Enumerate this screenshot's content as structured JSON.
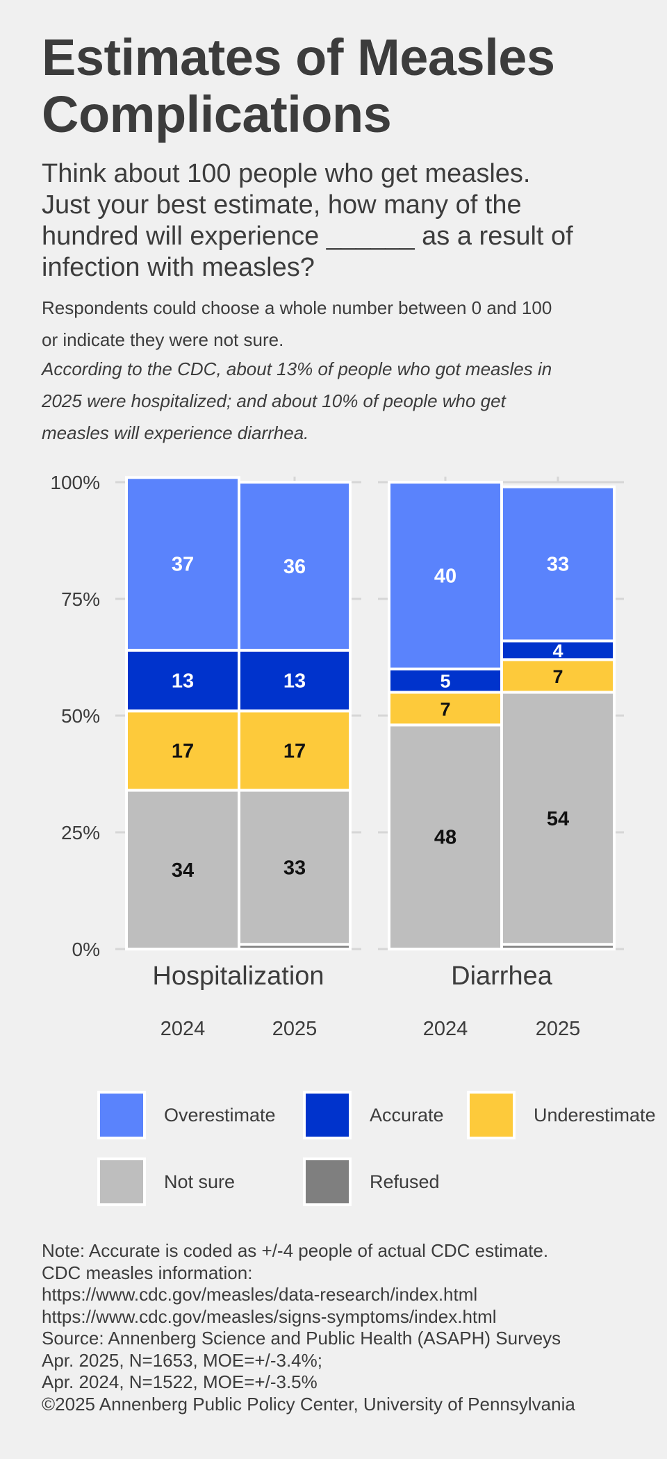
{
  "title_line1": "Estimates of Measles",
  "title_line2": "Complications",
  "question_lines": [
    "Think about 100 people who get measles.",
    "Just your best estimate, how many of the",
    "hundred will experience ______ as a result of",
    "infection with measles?"
  ],
  "note_lines": [
    "Respondents could choose a whole number between 0 and 100",
    "or indicate they were not sure."
  ],
  "cdc_lines": [
    "According to the CDC, about 13% of people who got measles in",
    "2025 were hospitalized; and about 10% of people who get",
    "measles will experience diarrhea."
  ],
  "chart_data": {
    "type": "bar",
    "stacked": true,
    "y_ticks": [
      "0%",
      "25%",
      "50%",
      "75%",
      "100%"
    ],
    "ylim": [
      0,
      100
    ],
    "panels": [
      {
        "name": "Hospitalization",
        "categories": [
          "2024",
          "2025"
        ],
        "stacks": [
          {
            "Refused": 0,
            "Not sure": 34,
            "Underestimate": 17,
            "Accurate": 13,
            "Overestimate": 37
          },
          {
            "Refused": 1,
            "Not sure": 33,
            "Underestimate": 17,
            "Accurate": 13,
            "Overestimate": 36
          }
        ]
      },
      {
        "name": "Diarrhea",
        "categories": [
          "2024",
          "2025"
        ],
        "stacks": [
          {
            "Refused": 0,
            "Not sure": 48,
            "Underestimate": 7,
            "Accurate": 5,
            "Overestimate": 40
          },
          {
            "Refused": 1,
            "Not sure": 54,
            "Underestimate": 7,
            "Accurate": 4,
            "Overestimate": 33
          }
        ]
      }
    ],
    "series_order": [
      "Refused",
      "Not sure",
      "Underestimate",
      "Accurate",
      "Overestimate"
    ],
    "colors": {
      "Overestimate": "#5a83fc",
      "Accurate": "#0033cc",
      "Underestimate": "#fdca3b",
      "Not sure": "#bebebe",
      "Refused": "#7f7f7f"
    },
    "label_colors": {
      "Overestimate": "#ffffff",
      "Accurate": "#ffffff",
      "Underestimate": "#111111",
      "Not sure": "#111111",
      "Refused": "#111111"
    }
  },
  "legend": [
    {
      "label": "Overestimate",
      "color": "#5a83fc"
    },
    {
      "label": "Accurate",
      "color": "#0033cc"
    },
    {
      "label": "Underestimate",
      "color": "#fdca3b"
    },
    {
      "label": "Not sure",
      "color": "#bebebe"
    },
    {
      "label": "Refused",
      "color": "#7f7f7f"
    }
  ],
  "footer_lines": [
    "Note: Accurate is coded as +/-4 people of actual CDC estimate.",
    "CDC measles information:",
    "https://www.cdc.gov/measles/data-research/index.html",
    "https://www.cdc.gov/measles/signs-symptoms/index.html",
    "Source: Annenberg Science and Public Health (ASAPH) Surveys",
    "Apr. 2025, N=1653, MOE=+/-3.4%;",
    "Apr. 2024, N=1522, MOE=+/-3.5%",
    "©2025 Annenberg Public Policy Center, University of Pennsylvania"
  ]
}
